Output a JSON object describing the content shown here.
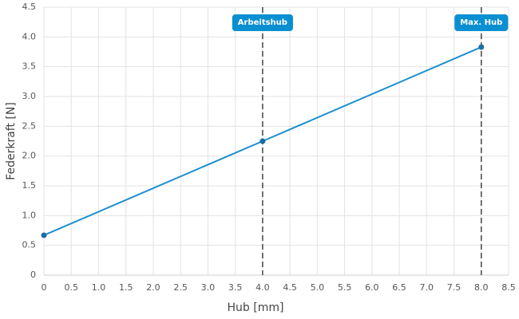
{
  "chart_data": {
    "type": "line",
    "x_label": "Hub [mm]",
    "y_label": "Federkraft [N]",
    "x": [
      0,
      4,
      8
    ],
    "values": [
      0.67,
      2.25,
      3.83
    ],
    "color": "#1a8fd1",
    "marker_color": "#1b6ea3",
    "xlim": [
      0,
      8.5
    ],
    "xticks": [
      0,
      0.5,
      {
        "value": 1,
        "label": "1.0"
      },
      1.5,
      {
        "value": 2,
        "label": "2.0"
      },
      2.5,
      {
        "value": 3,
        "label": "3.0"
      },
      3.5,
      {
        "value": 4,
        "label": "4.0"
      },
      4.5,
      {
        "value": 5,
        "label": "5.0"
      },
      5.5,
      {
        "value": 6,
        "label": "6.0"
      },
      6.5,
      {
        "value": 7,
        "label": "7.0"
      },
      7.5,
      {
        "value": 8,
        "label": "8.0"
      },
      8.5
    ],
    "ylim": [
      0,
      4.5
    ],
    "yticks": [
      0,
      0.5,
      {
        "value": 1,
        "label": "1.0"
      },
      1.5,
      {
        "value": 2,
        "label": "2.0"
      },
      2.5,
      {
        "value": 3,
        "label": "3.0"
      },
      3.5,
      {
        "value": 4,
        "label": "4.0"
      },
      4.5
    ],
    "grid": true,
    "annotations": [
      {
        "x": 4,
        "label": "Arbeitshub"
      },
      {
        "x": 8,
        "label": "Max. Hub"
      }
    ],
    "annotation_color": "#0a8fd1"
  }
}
